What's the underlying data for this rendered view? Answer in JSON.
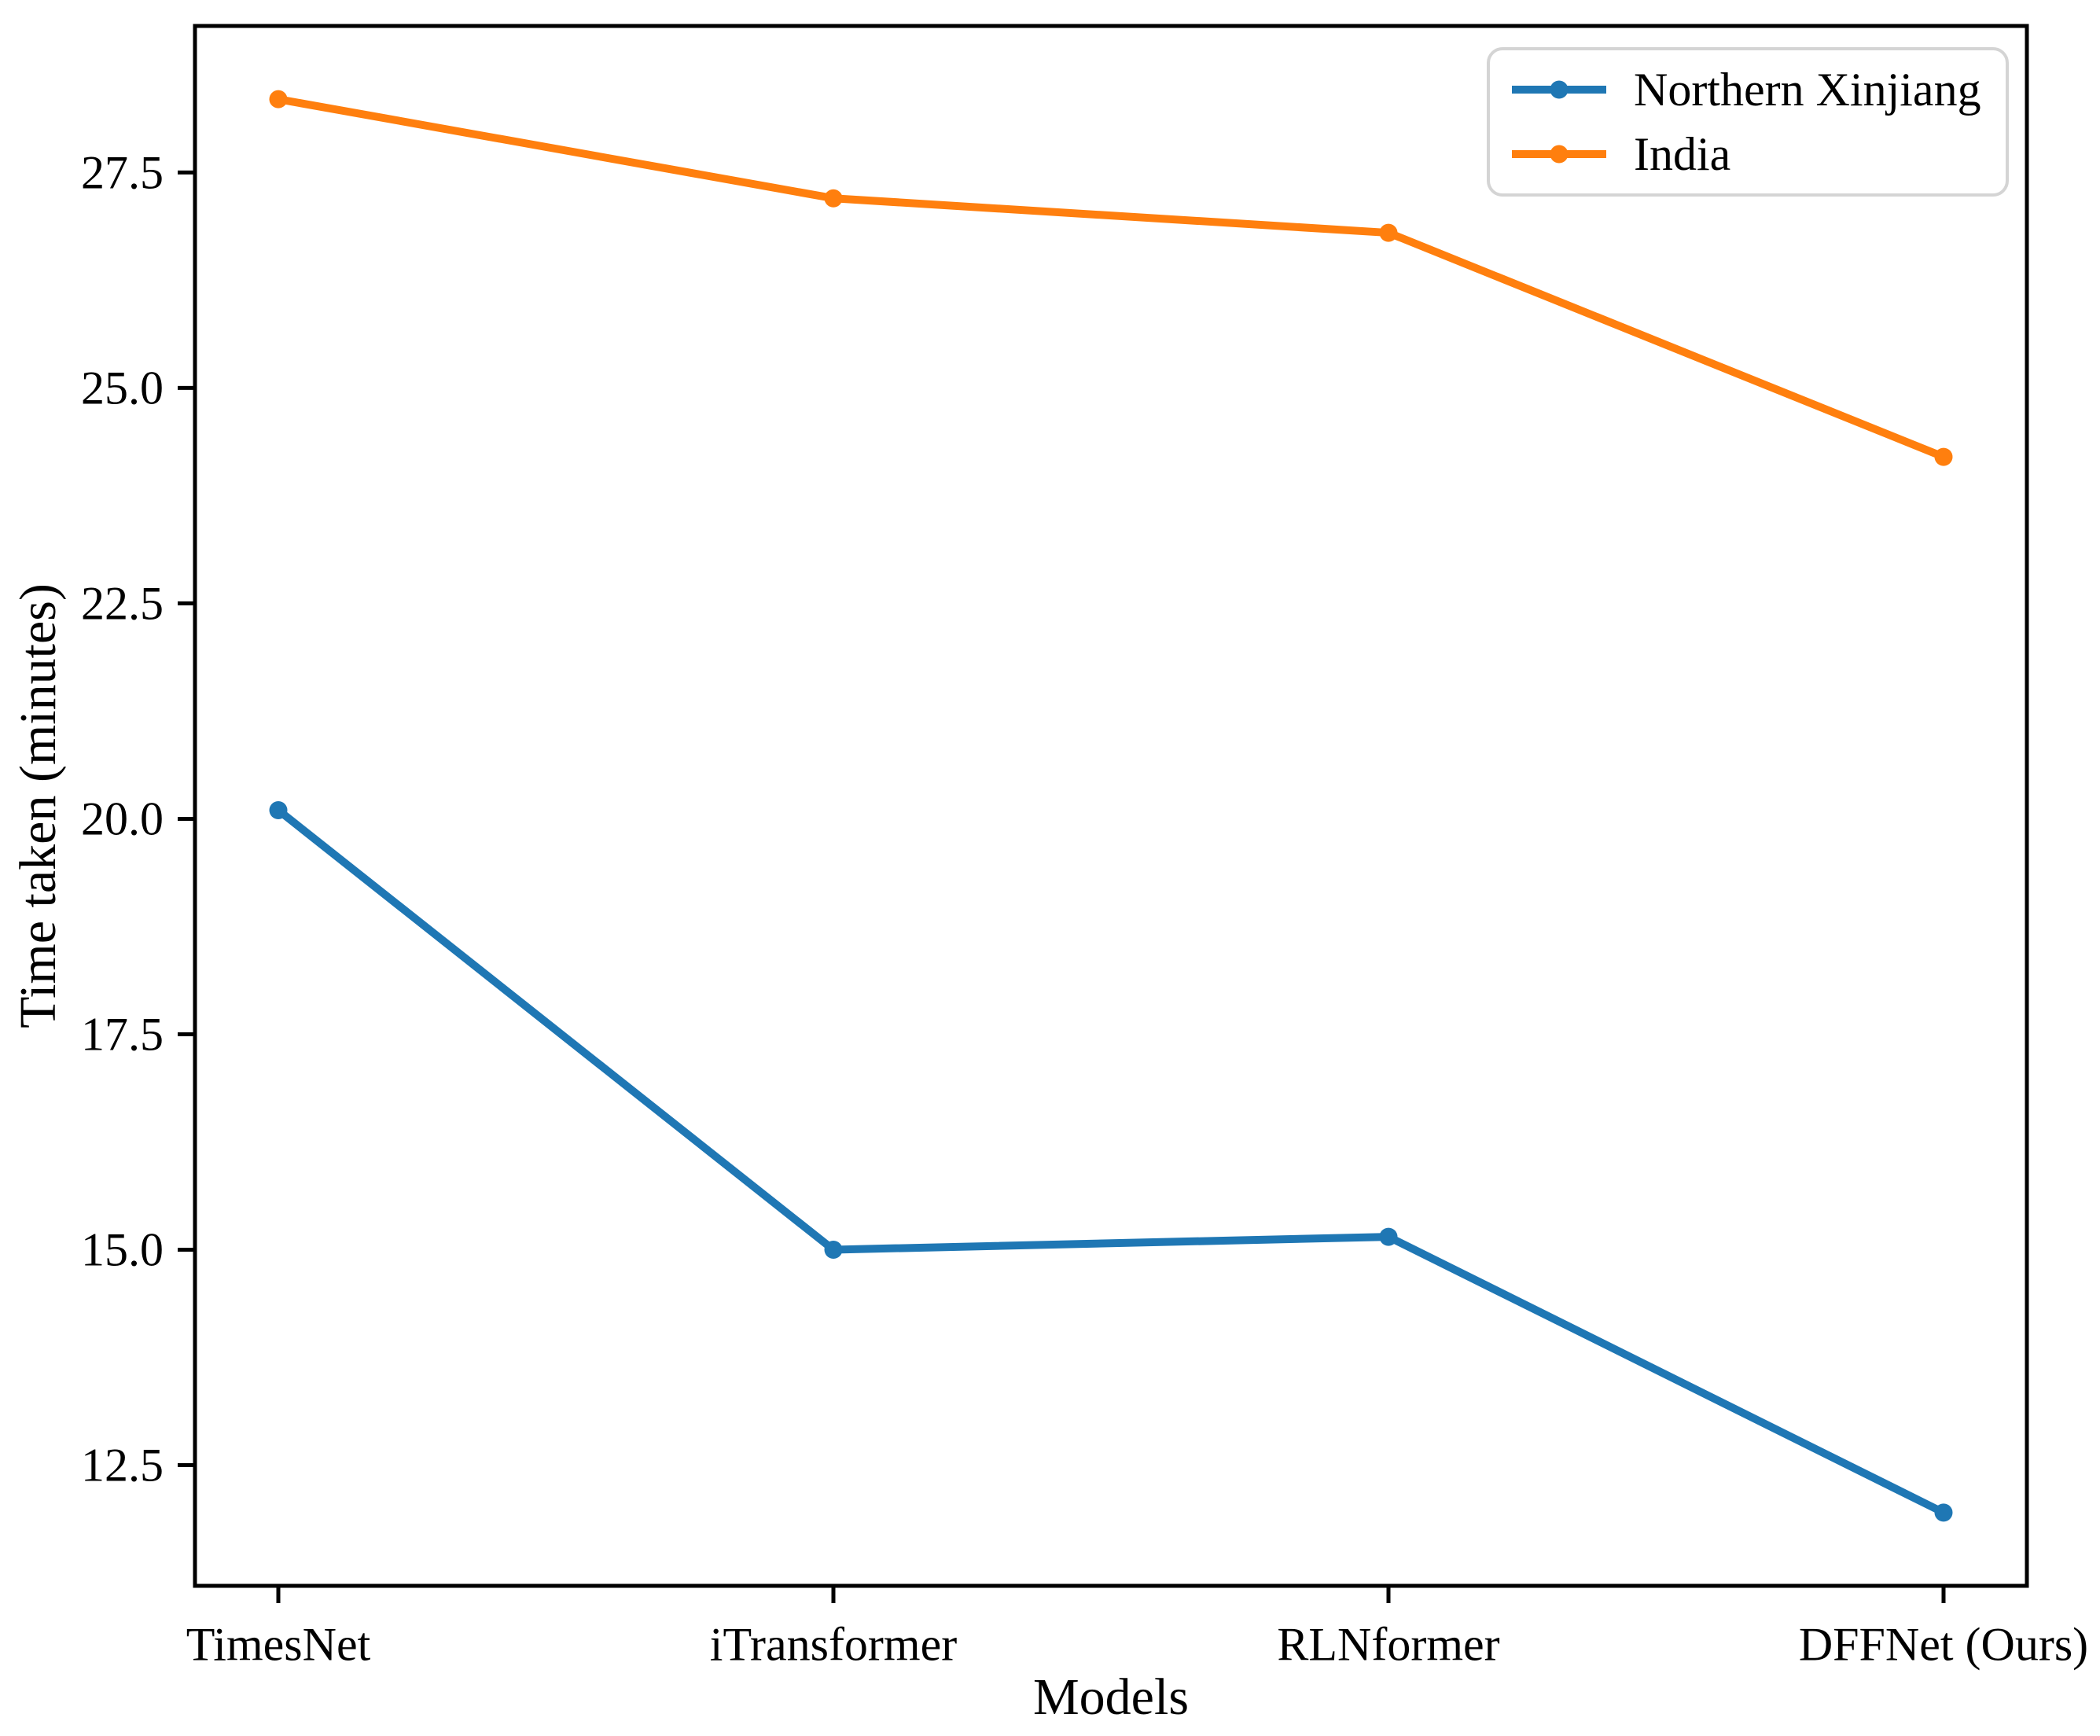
{
  "chart_data": {
    "type": "line",
    "title": "",
    "xlabel": "Models",
    "ylabel": "Time taken (minutes)",
    "categories": [
      "TimesNet",
      "iTransformer",
      "RLNformer",
      "DFFNet (Ours)"
    ],
    "series": [
      {
        "name": "Northern Xinjiang",
        "color": "#1f77b4",
        "values": [
          20.1,
          15.0,
          15.15,
          11.95
        ]
      },
      {
        "name": "India",
        "color": "#ff7f0e",
        "values": [
          28.35,
          27.2,
          26.8,
          24.2
        ]
      }
    ],
    "ytick_labels": [
      "12.5",
      "15.0",
      "17.5",
      "20.0",
      "22.5",
      "25.0",
      "27.5"
    ],
    "ylim": [
      11.1,
      29.2
    ],
    "grid": false,
    "legend_position": "upper right",
    "marker": "circle",
    "line_style": "solid",
    "colors": {
      "axis": "#000000",
      "legend_border": "#d4d4d4",
      "background": "#ffffff"
    }
  }
}
